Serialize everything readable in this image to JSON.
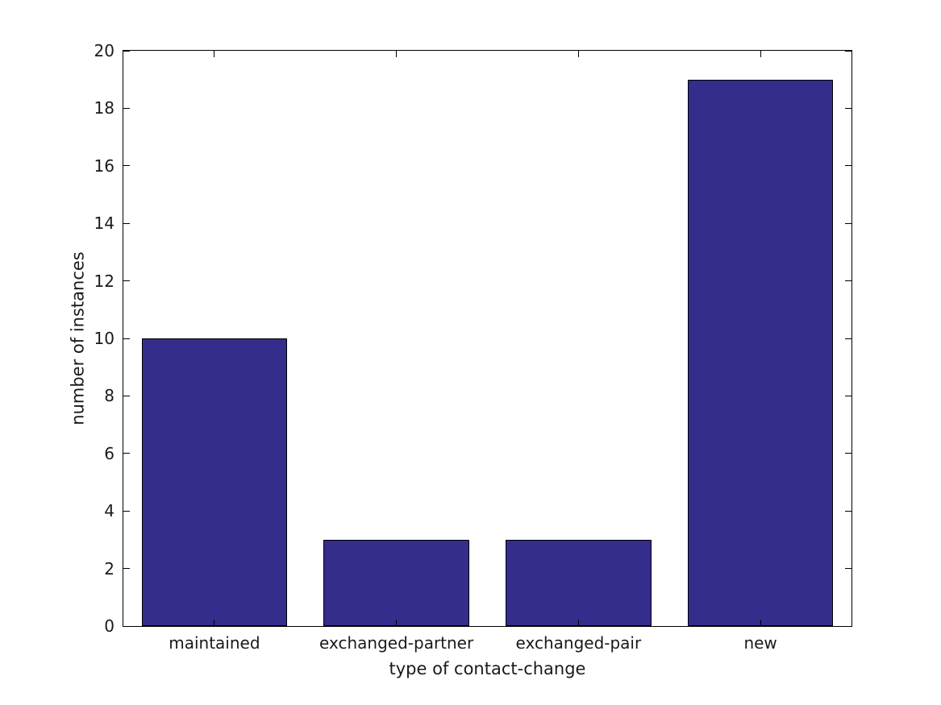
{
  "chart_data": {
    "type": "bar",
    "title": "",
    "categories": [
      "maintained",
      "exchanged-partner",
      "exchanged-pair",
      "new"
    ],
    "values": [
      10,
      3,
      3,
      19
    ],
    "xlabel": "type of contact-change",
    "ylabel": "number of instances",
    "ylim": [
      0,
      20
    ],
    "ytick_step": 2,
    "yticks": [
      0,
      2,
      4,
      6,
      8,
      10,
      12,
      14,
      16,
      18,
      20
    ],
    "bar_relative_width": 0.8,
    "grid": false,
    "legend": false,
    "colors": {
      "bar_fill": "#342D8B",
      "bar_edge": "#000000",
      "axis_frame": "#000000",
      "tick_mark": "#000000",
      "text": "#1a1a1a",
      "background": "#ffffff"
    }
  }
}
